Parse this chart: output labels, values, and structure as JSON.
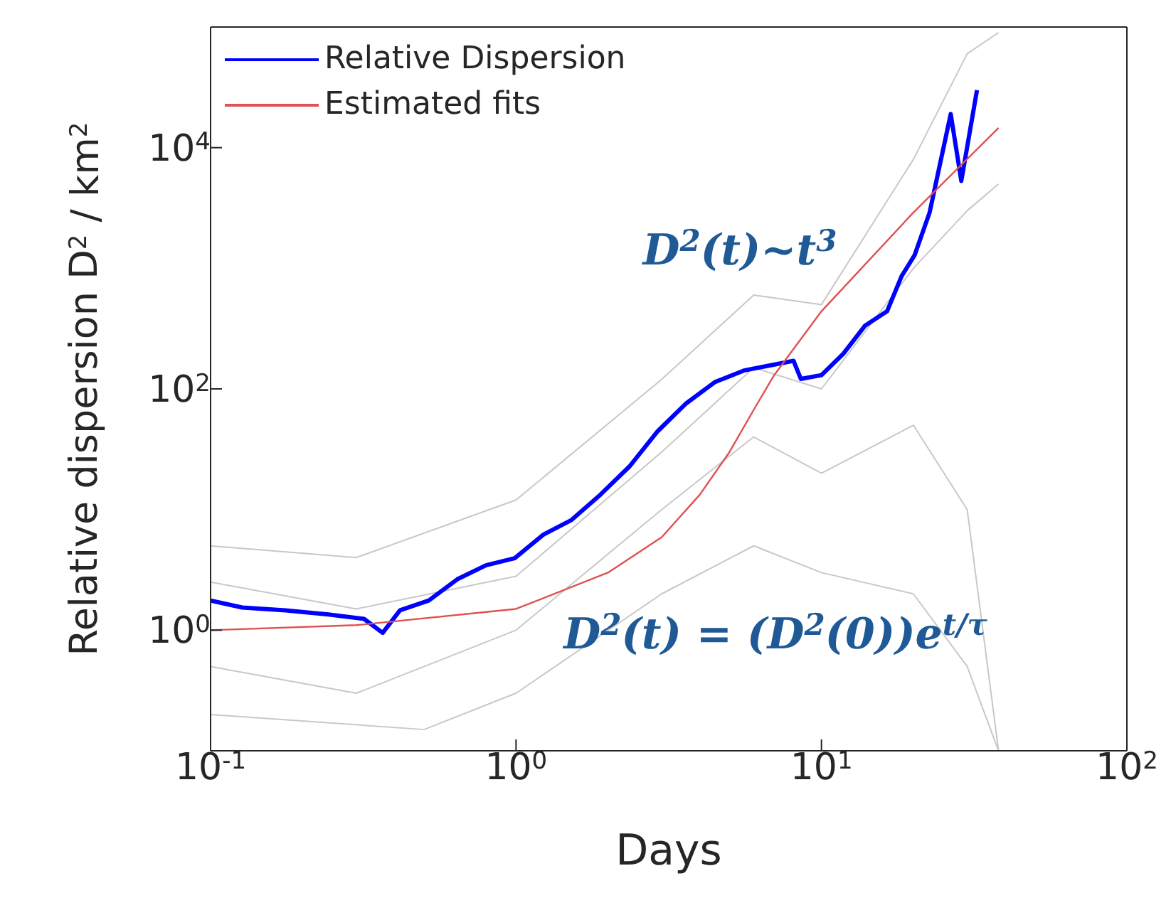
{
  "chart_data": {
    "type": "line",
    "xlabel": "Days",
    "ylabel": "Relative dispersion D$^{2}$ / km$^{2}$",
    "log": "xy",
    "legend": "top left",
    "line_style": "solid",
    "marker": "none",
    "xlim": [
      0.1,
      100
    ],
    "xticks": [
      {
        "value": 0.1,
        "label": "10$^{-1}$"
      },
      {
        "value": 1,
        "label": "10$^{0}$"
      },
      {
        "value": 10,
        "label": "10$^{1}$"
      },
      {
        "value": 100,
        "label": "10$^{2}$"
      }
    ],
    "ylim": [
      0.1,
      100000
    ],
    "yticks": [
      {
        "value": 1,
        "label": "10$^{0}$"
      },
      {
        "value": 100,
        "label": "10$^{2}$"
      },
      {
        "value": 10000,
        "label": "10$^{4}$"
      }
    ],
    "series": [
      {
        "color": "#c8c8c8",
        "x": [
          0.1,
          0.3,
          1,
          3,
          6,
          10,
          20,
          30,
          38
        ],
        "values": [
          5,
          4,
          12,
          120,
          600,
          500,
          8000,
          60000,
          90000
        ]
      },
      {
        "color": "#c8c8c8",
        "x": [
          0.1,
          0.3,
          1,
          3,
          6,
          10,
          20,
          30,
          38
        ],
        "values": [
          2.5,
          1.5,
          2.8,
          30,
          150,
          100,
          1000,
          3000,
          5000
        ]
      },
      {
        "color": "#c8c8c8",
        "x": [
          0.1,
          0.3,
          1,
          3,
          6,
          10,
          20,
          30,
          38
        ],
        "values": [
          0.5,
          0.3,
          1,
          10,
          40,
          20,
          50,
          10,
          0.1
        ]
      },
      {
        "color": "#c8c8c8",
        "x": [
          0.1,
          0.5,
          1,
          3,
          6,
          10,
          20,
          30,
          38
        ],
        "values": [
          0.2,
          0.15,
          0.3,
          2,
          5,
          3,
          2,
          0.5,
          0.1
        ]
      },
      {
        "name": "Relative Dispersion",
        "color": "#0000ff",
        "x": [
          0.1,
          0.127,
          0.176,
          0.243,
          0.318,
          0.366,
          0.417,
          0.518,
          0.642,
          0.797,
          0.99,
          1.23,
          1.52,
          1.89,
          2.35,
          2.91,
          3.61,
          4.48,
          5.57,
          6.92,
          8.1,
          8.56,
          10,
          11.8,
          13.9,
          16.4,
          18.3,
          20.2,
          22.6,
          26.5,
          28.7,
          32.3
        ],
        "values": [
          1.76,
          1.54,
          1.46,
          1.35,
          1.24,
          0.95,
          1.46,
          1.76,
          2.64,
          3.45,
          3.95,
          6.2,
          8.2,
          13.3,
          22.7,
          44.6,
          76,
          114,
          142,
          158,
          171,
          121,
          130,
          196,
          335,
          440,
          860,
          1290,
          2900,
          19000,
          5300,
          30000
        ]
      },
      {
        "name": "Estimated fits",
        "color": "#e05050",
        "x": [
          0.1,
          0.3,
          1,
          2,
          3,
          4,
          5,
          6,
          7,
          10,
          20,
          38
        ],
        "values": [
          1,
          1.1,
          1.5,
          3,
          5.9,
          13.3,
          30,
          67,
          130,
          440,
          2900,
          14600
        ]
      }
    ],
    "annotations": [
      "D$^{2}$(t)~t$^{3}$",
      "D$^{2}$(t) = (D$^{2}$(0))e$^{t/τ}$"
    ]
  }
}
